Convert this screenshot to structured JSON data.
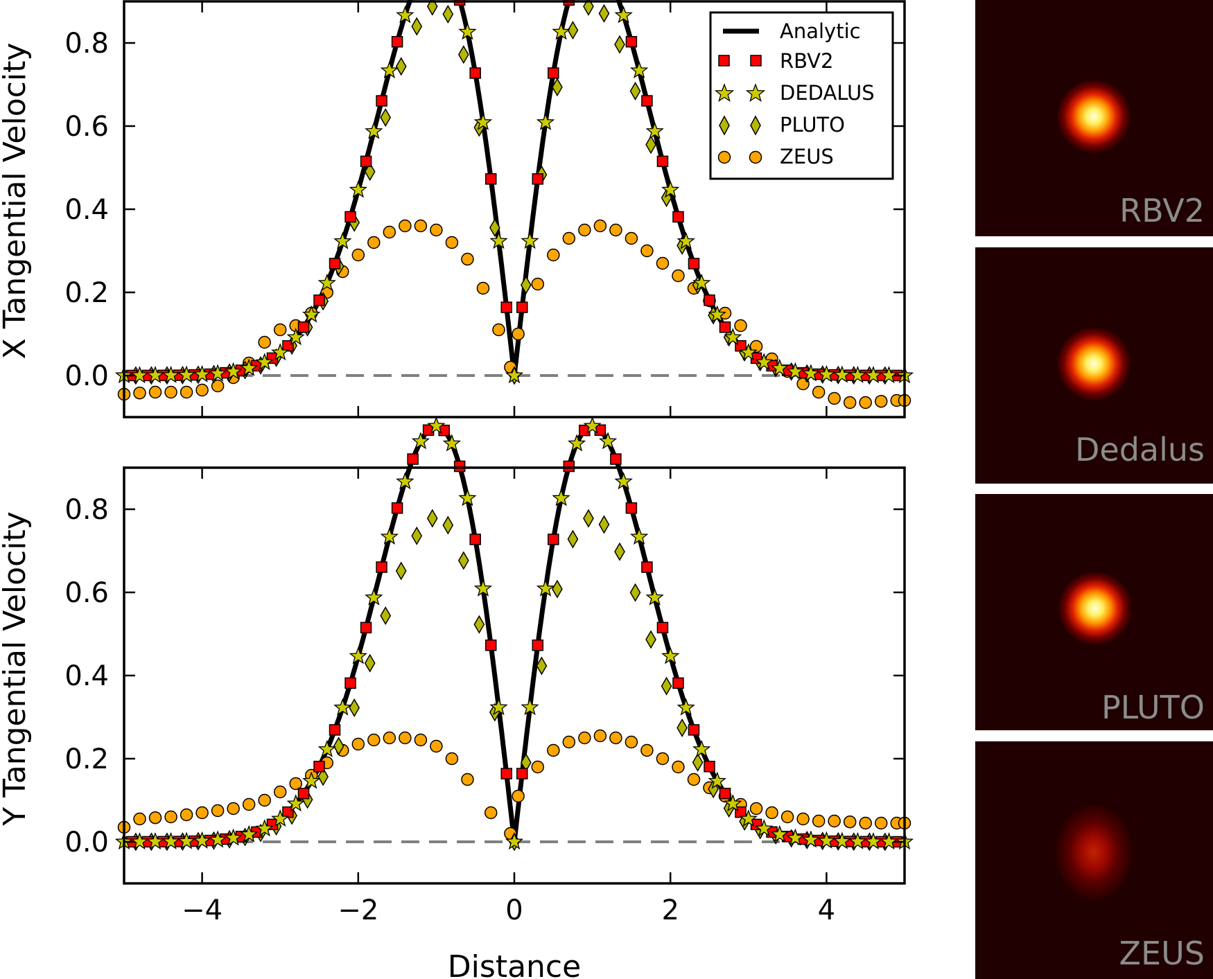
{
  "chart_data": [
    {
      "type": "line",
      "name": "x-tangential-velocity",
      "ylabel": "X Tangential Velocity",
      "xlabel": "",
      "xlim": [
        -5,
        5
      ],
      "ylim": [
        -0.1,
        0.9
      ],
      "yticks": [
        0.0,
        0.2,
        0.4,
        0.6,
        0.8
      ],
      "ytick_labels": [
        "0.0",
        "0.2",
        "0.4",
        "0.6",
        "0.8"
      ],
      "xticks": [
        -4,
        -2,
        0,
        2,
        4
      ],
      "reference_line": 0.0,
      "legend_position": "top-right",
      "legend": [
        "Analytic",
        "RBV2",
        "DEDALUS",
        "PLUTO",
        "ZEUS"
      ],
      "pluto_scale": 0.89,
      "zeus": {
        "x": [
          -5.0,
          -4.8,
          -4.6,
          -4.4,
          -4.2,
          -4.0,
          -3.8,
          -3.6,
          -3.4,
          -3.2,
          -3.0,
          -2.8,
          -2.6,
          -2.4,
          -2.2,
          -2.0,
          -1.8,
          -1.6,
          -1.4,
          -1.2,
          -1.0,
          -0.8,
          -0.6,
          -0.4,
          -0.2,
          -0.05,
          0.05,
          0.3,
          0.5,
          0.7,
          0.9,
          1.1,
          1.3,
          1.5,
          1.7,
          1.9,
          2.1,
          2.3,
          2.5,
          2.7,
          2.9,
          3.1,
          3.3,
          3.5,
          3.7,
          3.9,
          4.1,
          4.3,
          4.5,
          4.7,
          4.9,
          5.0
        ],
        "y": [
          -0.045,
          -0.042,
          -0.04,
          -0.04,
          -0.04,
          -0.035,
          -0.025,
          -0.005,
          0.03,
          0.08,
          0.11,
          0.12,
          0.15,
          0.2,
          0.25,
          0.29,
          0.32,
          0.345,
          0.36,
          0.36,
          0.35,
          0.32,
          0.28,
          0.21,
          0.11,
          0.02,
          0.1,
          0.22,
          0.29,
          0.33,
          0.35,
          0.36,
          0.35,
          0.33,
          0.3,
          0.27,
          0.24,
          0.21,
          0.18,
          0.15,
          0.12,
          0.07,
          0.04,
          0.01,
          -0.02,
          -0.04,
          -0.055,
          -0.065,
          -0.065,
          -0.062,
          -0.06,
          -0.06
        ]
      }
    },
    {
      "type": "line",
      "name": "y-tangential-velocity",
      "ylabel": "Y Tangential Velocity",
      "xlabel": "Distance",
      "xlim": [
        -5,
        5
      ],
      "ylim": [
        -0.1,
        0.9
      ],
      "yticks": [
        0.0,
        0.2,
        0.4,
        0.6,
        0.8
      ],
      "ytick_labels": [
        "0.0",
        "0.2",
        "0.4",
        "0.6",
        "0.8"
      ],
      "xticks": [
        -4,
        -2,
        0,
        2,
        4
      ],
      "xtick_labels": [
        "−4",
        "−2",
        "0",
        "2",
        "4"
      ],
      "reference_line": 0.0,
      "pluto_scale": 0.78,
      "zeus": {
        "x": [
          -5.0,
          -4.8,
          -4.6,
          -4.4,
          -4.2,
          -4.0,
          -3.8,
          -3.6,
          -3.4,
          -3.2,
          -3.0,
          -2.8,
          -2.6,
          -2.4,
          -2.2,
          -2.0,
          -1.8,
          -1.6,
          -1.4,
          -1.2,
          -1.0,
          -0.8,
          -0.6,
          -0.3,
          -0.05,
          0.05,
          0.3,
          0.5,
          0.7,
          0.9,
          1.1,
          1.3,
          1.5,
          1.7,
          1.9,
          2.1,
          2.3,
          2.5,
          2.7,
          2.9,
          3.1,
          3.3,
          3.5,
          3.7,
          3.9,
          4.1,
          4.3,
          4.5,
          4.7,
          4.9,
          5.0
        ],
        "y": [
          0.035,
          0.055,
          0.058,
          0.06,
          0.065,
          0.07,
          0.075,
          0.08,
          0.09,
          0.1,
          0.12,
          0.14,
          0.16,
          0.19,
          0.22,
          0.235,
          0.245,
          0.25,
          0.25,
          0.245,
          0.23,
          0.2,
          0.15,
          0.07,
          0.02,
          0.11,
          0.18,
          0.22,
          0.24,
          0.25,
          0.255,
          0.25,
          0.24,
          0.22,
          0.2,
          0.18,
          0.15,
          0.13,
          0.11,
          0.09,
          0.08,
          0.07,
          0.06,
          0.055,
          0.05,
          0.05,
          0.048,
          0.045,
          0.045,
          0.045,
          0.045
        ]
      }
    }
  ],
  "legend_labels": {
    "analytic": "Analytic",
    "rbv2": "RBV2",
    "dedalus": "DEDALUS",
    "pluto": "PLUTO",
    "zeus": "ZEUS"
  },
  "colors": {
    "analytic": "#000000",
    "rbv2": "#ff0000",
    "dedalus": "#cccc00",
    "pluto": "#b5b800",
    "zeus": "#ffa500",
    "reference_line": "#808080",
    "panel_label": "#8c8c8c"
  },
  "image_panels": [
    {
      "label": "RBV2",
      "intensity": 1.0,
      "spread": 1.0
    },
    {
      "label": "Dedalus",
      "intensity": 1.0,
      "spread": 1.0
    },
    {
      "label": "PLUTO",
      "intensity": 1.0,
      "spread": 1.05
    },
    {
      "label": "ZEUS",
      "intensity": 0.72,
      "spread": 1.45
    }
  ]
}
